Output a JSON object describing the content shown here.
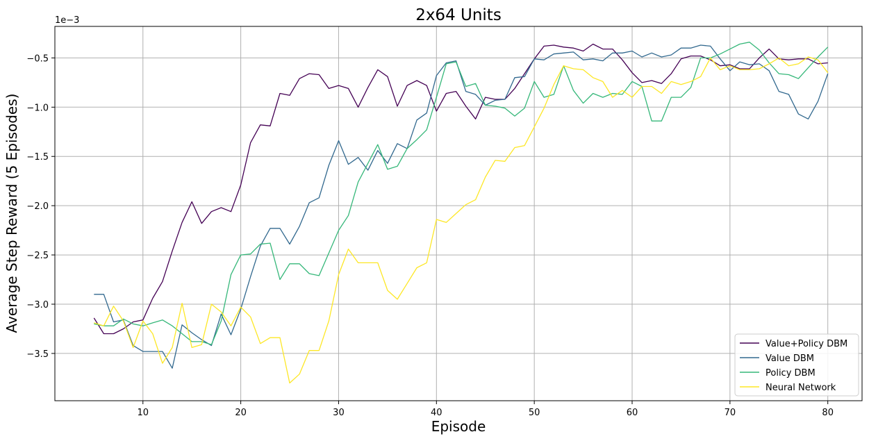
{
  "chart_data": {
    "type": "line",
    "title": "2x64 Units",
    "xlabel": "Episode",
    "ylabel": "Average Step Reward (5 Episodes)",
    "y_scale_note": "1e−3",
    "xlim": [
      1,
      83.5
    ],
    "ylim": [
      -3.98,
      -0.18
    ],
    "xticks": [
      10,
      20,
      30,
      40,
      50,
      60,
      70,
      80
    ],
    "yticks": [
      -3.5,
      -3.0,
      -2.5,
      -2.0,
      -1.5,
      -1.0,
      -0.5
    ],
    "ytick_labels": [
      "−3.5",
      "−3.0",
      "−2.5",
      "−2.0",
      "−1.5",
      "−1.0",
      "−0.5"
    ],
    "grid": true,
    "legend_position": "lower-right",
    "x": [
      5,
      6,
      7,
      8,
      9,
      10,
      11,
      12,
      13,
      14,
      15,
      16,
      17,
      18,
      19,
      20,
      21,
      22,
      23,
      24,
      25,
      26,
      27,
      28,
      29,
      30,
      31,
      32,
      33,
      34,
      35,
      36,
      37,
      38,
      39,
      40,
      41,
      42,
      43,
      44,
      45,
      46,
      47,
      48,
      49,
      50,
      51,
      52,
      53,
      54,
      55,
      56,
      57,
      58,
      59,
      60,
      61,
      62,
      63,
      64,
      65,
      66,
      67,
      68,
      69,
      70,
      71,
      72,
      73,
      74,
      75,
      76,
      77,
      78,
      79,
      80
    ],
    "series": [
      {
        "name": "Value+Policy DBM",
        "color": "#440154",
        "values": [
          -3.14,
          -3.3,
          -3.3,
          -3.25,
          -3.18,
          -3.16,
          -2.94,
          -2.77,
          -2.46,
          -2.17,
          -1.96,
          -2.18,
          -2.06,
          -2.02,
          -2.06,
          -1.79,
          -1.36,
          -1.18,
          -1.19,
          -0.86,
          -0.88,
          -0.71,
          -0.66,
          -0.67,
          -0.81,
          -0.78,
          -0.81,
          -1.0,
          -0.8,
          -0.62,
          -0.69,
          -0.99,
          -0.78,
          -0.73,
          -0.78,
          -1.04,
          -0.86,
          -0.84,
          -0.99,
          -1.12,
          -0.9,
          -0.92,
          -0.92,
          -0.81,
          -0.66,
          -0.51,
          -0.38,
          -0.37,
          -0.39,
          -0.4,
          -0.43,
          -0.36,
          -0.41,
          -0.41,
          -0.52,
          -0.65,
          -0.75,
          -0.73,
          -0.76,
          -0.66,
          -0.51,
          -0.48,
          -0.48,
          -0.52,
          -0.58,
          -0.57,
          -0.61,
          -0.61,
          -0.5,
          -0.41,
          -0.51,
          -0.52,
          -0.51,
          -0.51,
          -0.56,
          -0.55
        ]
      },
      {
        "name": "Value DBM",
        "color": "#31688e",
        "values": [
          -2.9,
          -2.9,
          -3.18,
          -3.16,
          -3.42,
          -3.48,
          -3.48,
          -3.48,
          -3.65,
          -3.21,
          -3.29,
          -3.36,
          -3.42,
          -3.1,
          -3.31,
          -3.05,
          -2.72,
          -2.41,
          -2.23,
          -2.23,
          -2.39,
          -2.21,
          -1.97,
          -1.92,
          -1.59,
          -1.34,
          -1.58,
          -1.51,
          -1.64,
          -1.44,
          -1.57,
          -1.37,
          -1.42,
          -1.13,
          -1.06,
          -0.68,
          -0.55,
          -0.53,
          -0.84,
          -0.87,
          -0.98,
          -0.93,
          -0.92,
          -0.7,
          -0.69,
          -0.51,
          -0.52,
          -0.46,
          -0.45,
          -0.44,
          -0.52,
          -0.51,
          -0.53,
          -0.45,
          -0.45,
          -0.43,
          -0.49,
          -0.45,
          -0.49,
          -0.47,
          -0.4,
          -0.4,
          -0.37,
          -0.38,
          -0.51,
          -0.63,
          -0.54,
          -0.57,
          -0.56,
          -0.63,
          -0.84,
          -0.87,
          -1.07,
          -1.12,
          -0.94,
          -0.66
        ]
      },
      {
        "name": "Policy DBM",
        "color": "#35b779",
        "values": [
          -3.2,
          -3.22,
          -3.22,
          -3.15,
          -3.2,
          -3.22,
          -3.19,
          -3.16,
          -3.22,
          -3.3,
          -3.38,
          -3.38,
          -3.41,
          -3.17,
          -2.7,
          -2.5,
          -2.49,
          -2.39,
          -2.38,
          -2.75,
          -2.59,
          -2.59,
          -2.69,
          -2.71,
          -2.48,
          -2.25,
          -2.1,
          -1.76,
          -1.57,
          -1.38,
          -1.63,
          -1.6,
          -1.42,
          -1.33,
          -1.23,
          -0.9,
          -0.56,
          -0.54,
          -0.79,
          -0.76,
          -0.98,
          -0.99,
          -1.01,
          -1.09,
          -1.01,
          -0.74,
          -0.9,
          -0.87,
          -0.58,
          -0.83,
          -0.96,
          -0.86,
          -0.9,
          -0.86,
          -0.87,
          -0.74,
          -0.79,
          -1.14,
          -1.14,
          -0.9,
          -0.9,
          -0.8,
          -0.5,
          -0.5,
          -0.46,
          -0.41,
          -0.36,
          -0.34,
          -0.42,
          -0.55,
          -0.66,
          -0.67,
          -0.71,
          -0.6,
          -0.49,
          -0.39
        ]
      },
      {
        "name": "Neural Network",
        "color": "#fde725",
        "values": [
          -3.19,
          -3.22,
          -3.02,
          -3.17,
          -3.44,
          -3.17,
          -3.3,
          -3.6,
          -3.44,
          -2.99,
          -3.44,
          -3.41,
          -3.0,
          -3.08,
          -3.22,
          -3.03,
          -3.13,
          -3.4,
          -3.34,
          -3.34,
          -3.8,
          -3.71,
          -3.47,
          -3.47,
          -3.17,
          -2.7,
          -2.44,
          -2.58,
          -2.58,
          -2.58,
          -2.86,
          -2.95,
          -2.79,
          -2.63,
          -2.58,
          -2.14,
          -2.17,
          -2.08,
          -1.99,
          -1.94,
          -1.71,
          -1.54,
          -1.55,
          -1.41,
          -1.39,
          -1.2,
          -1.01,
          -0.77,
          -0.58,
          -0.61,
          -0.62,
          -0.7,
          -0.74,
          -0.9,
          -0.83,
          -0.9,
          -0.79,
          -0.79,
          -0.86,
          -0.74,
          -0.77,
          -0.74,
          -0.69,
          -0.5,
          -0.62,
          -0.58,
          -0.62,
          -0.62,
          -0.61,
          -0.56,
          -0.5,
          -0.58,
          -0.56,
          -0.49,
          -0.52,
          -0.65
        ]
      }
    ]
  }
}
